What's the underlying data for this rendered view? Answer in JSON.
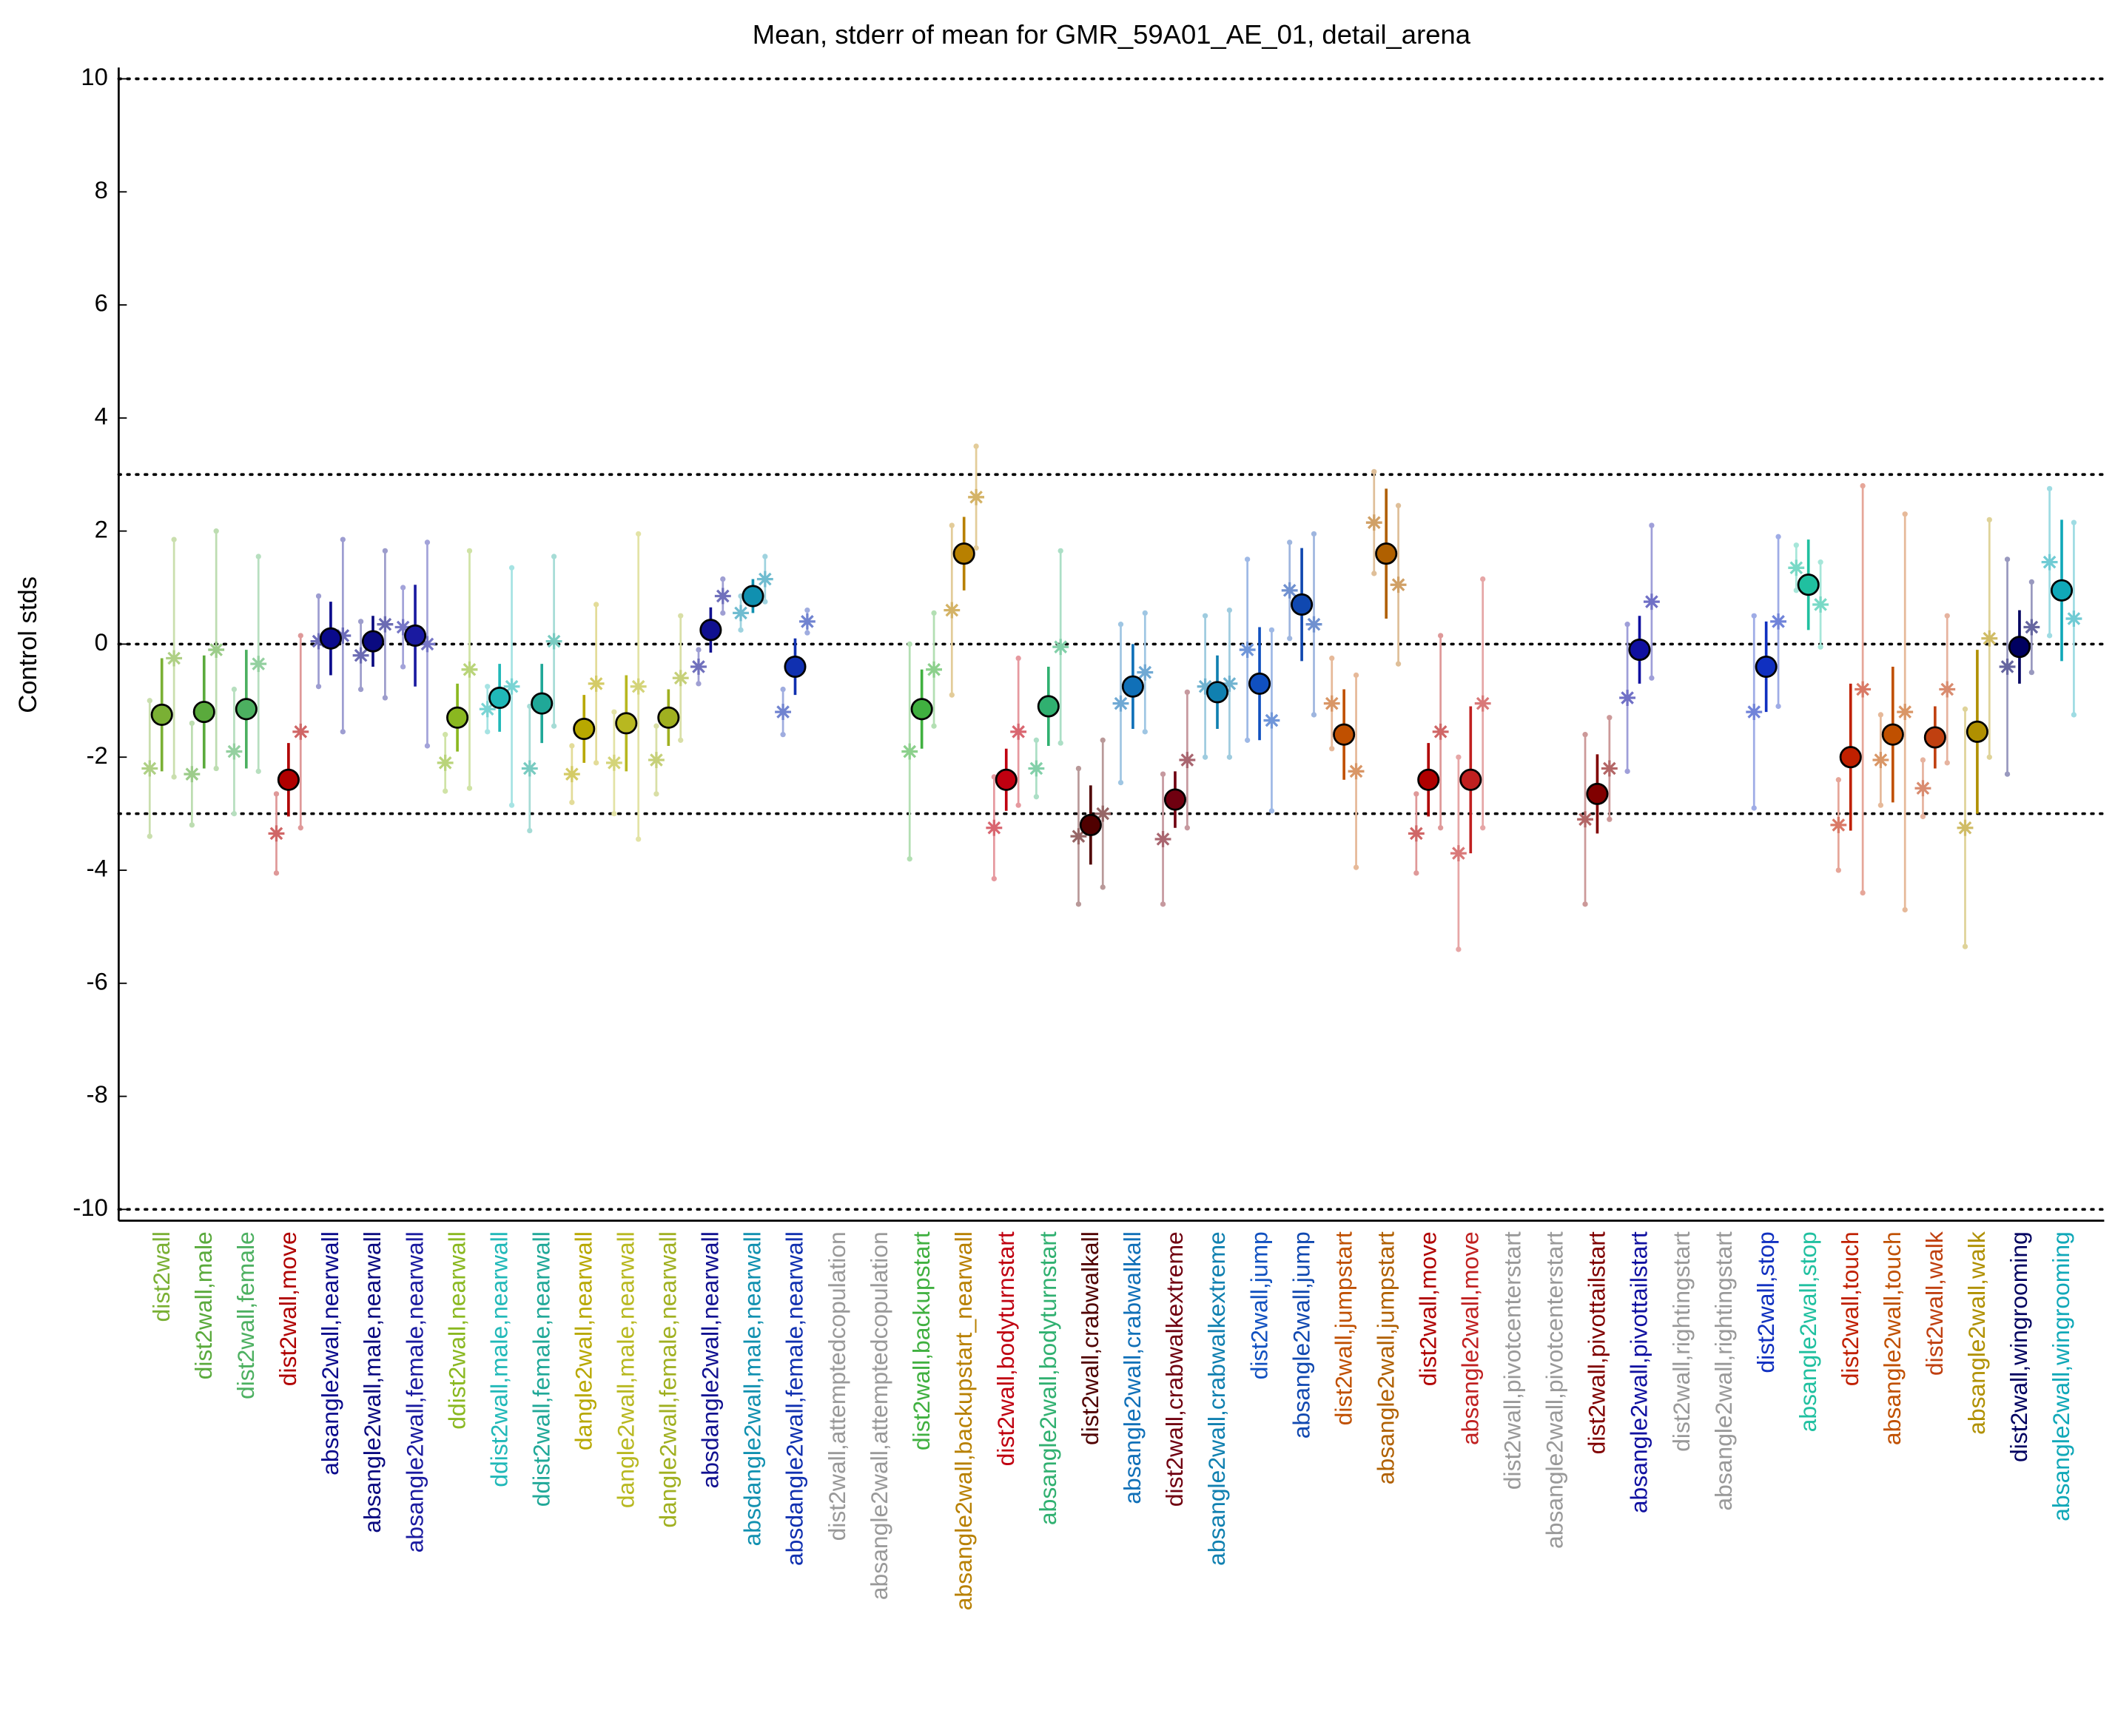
{
  "chart_data": {
    "type": "errorbar",
    "title": "Mean, stderr of mean for GMR_59A01_AE_01, detail_arena",
    "ylabel": "Control stds",
    "categories": [
      "dist2wall",
      "dist2wall,male",
      "dist2wall,female",
      "dist2wall,move",
      "absangle2wall,nearwall",
      "absangle2wall,male,nearwall",
      "absangle2wall,female,nearwall",
      "ddist2wall,nearwall",
      "ddist2wall,male,nearwall",
      "ddist2wall,female,nearwall",
      "dangle2wall,nearwall",
      "dangle2wall,male,nearwall",
      "dangle2wall,female,nearwall",
      "absdangle2wall,nearwall",
      "absdangle2wall,male,nearwall",
      "absdangle2wall,female,nearwall",
      "dist2wall,attemptedcopulation",
      "absangle2wall,attemptedcopulation",
      "dist2wall,backupstart",
      "absangle2wall,backupstart_nearwall",
      "dist2wall,bodyturnstart",
      "absangle2wall,bodyturnstart",
      "dist2wall,crabwalkall",
      "absangle2wall,crabwalkall",
      "dist2wall,crabwalkextreme",
      "absangle2wall,crabwalkextreme",
      "dist2wall,jump",
      "absangle2wall,jump",
      "dist2wall,jumpstart",
      "absangle2wall,jumpstart",
      "dist2wall,move",
      "absangle2wall,move",
      "dist2wall,pivotcenterstart",
      "absangle2wall,pivotcenterstart",
      "dist2wall,pivottailstart",
      "absangle2wall,pivottailstart",
      "dist2wall,rightingstart",
      "absangle2wall,rightingstart",
      "dist2wall,stop",
      "absangle2wall,stop",
      "dist2wall,touch",
      "absangle2wall,touch",
      "dist2wall,walk",
      "absangle2wall,walk",
      "dist2wall,wingrooming",
      "absangle2wall,wingrooming"
    ],
    "colors": [
      "#7ab034",
      "#5aaa3c",
      "#4cb060",
      "#b00000",
      "#0a0a8c",
      "#0a0a80",
      "#1a1aa0",
      "#8ab820",
      "#20b8b8",
      "#20a898",
      "#b8a800",
      "#b8b820",
      "#a0b020",
      "#101090",
      "#1090b0",
      "#1030b0",
      "#999999",
      "#999999",
      "#40b040",
      "#b88000",
      "#c00010",
      "#30b070",
      "#500000",
      "#1070b8",
      "#700010",
      "#1080b0",
      "#1050c0",
      "#1048b0",
      "#c05000",
      "#b06000",
      "#b00000",
      "#c02020",
      "#999999",
      "#999999",
      "#800000",
      "#1010a0",
      "#999999",
      "#999999",
      "#1030c0",
      "#20c0a0",
      "#c02000",
      "#c05000",
      "#c04010",
      "#b09000",
      "#000060",
      "#10a8b8"
    ],
    "values": [
      -1.25,
      -1.2,
      -1.15,
      -2.4,
      0.1,
      0.05,
      0.15,
      -1.3,
      -0.95,
      -1.05,
      -1.5,
      -1.4,
      -1.3,
      0.25,
      0.85,
      -0.4,
      null,
      null,
      -1.15,
      1.6,
      -2.4,
      -1.1,
      -3.2,
      -0.75,
      -2.75,
      -0.85,
      -0.7,
      0.7,
      -1.6,
      1.6,
      -2.4,
      -2.4,
      null,
      null,
      -2.65,
      -0.1,
      null,
      null,
      -0.4,
      1.05,
      -2.0,
      -1.6,
      -1.65,
      -1.55,
      -0.05,
      0.95
    ],
    "errors": [
      1.0,
      1.0,
      1.05,
      0.65,
      0.65,
      0.45,
      0.9,
      0.6,
      0.6,
      0.7,
      0.6,
      0.85,
      0.5,
      0.4,
      0.3,
      0.5,
      null,
      null,
      0.7,
      0.65,
      0.55,
      0.7,
      0.7,
      0.75,
      0.5,
      0.65,
      1.0,
      1.0,
      0.8,
      1.15,
      0.65,
      1.3,
      null,
      null,
      0.7,
      0.6,
      null,
      null,
      0.8,
      0.8,
      1.3,
      1.2,
      0.55,
      1.45,
      0.65,
      1.25
    ],
    "markers": [
      {
        "values": [
          -2.2,
          -2.3,
          -1.9,
          -3.35,
          0.05,
          -0.2,
          0.3,
          -2.1,
          -1.15,
          -2.2,
          -2.3,
          -2.1,
          -2.05,
          -0.4,
          0.55,
          -1.2,
          null,
          null,
          -1.9,
          0.6,
          -3.25,
          -2.2,
          -3.4,
          -1.05,
          -3.45,
          -0.75,
          -0.1,
          0.95,
          -1.05,
          2.15,
          -3.35,
          -3.7,
          null,
          null,
          -3.1,
          -0.95,
          null,
          null,
          -1.2,
          1.35,
          -3.2,
          -2.05,
          -2.55,
          -3.25,
          -0.4,
          1.45
        ],
        "errors": [
          1.2,
          0.9,
          1.1,
          0.7,
          0.8,
          0.6,
          0.7,
          0.5,
          0.4,
          1.1,
          0.5,
          0.9,
          0.6,
          0.3,
          0.3,
          0.4,
          null,
          null,
          1.9,
          1.5,
          0.9,
          0.5,
          1.2,
          1.4,
          1.15,
          1.25,
          1.6,
          0.85,
          0.8,
          0.9,
          0.7,
          1.7,
          null,
          null,
          1.5,
          1.3,
          null,
          null,
          1.7,
          0.4,
          0.8,
          0.8,
          0.5,
          2.1,
          1.9,
          1.3
        ]
      },
      {
        "values": [
          -0.25,
          -0.1,
          -0.35,
          -1.55,
          0.15,
          0.35,
          0.0,
          -0.45,
          -0.75,
          0.05,
          -0.7,
          -0.75,
          -0.6,
          0.85,
          1.15,
          0.4,
          null,
          null,
          -0.45,
          2.6,
          -1.55,
          -0.05,
          -3.0,
          -0.5,
          -2.05,
          -0.7,
          -1.35,
          0.35,
          -2.25,
          1.05,
          -1.55,
          -1.05,
          null,
          null,
          -2.2,
          0.75,
          null,
          null,
          0.4,
          0.7,
          -0.8,
          -1.2,
          -0.8,
          0.1,
          0.3,
          0.45
        ],
        "errors": [
          2.1,
          2.1,
          1.9,
          1.7,
          1.7,
          1.3,
          1.8,
          2.1,
          2.1,
          1.5,
          1.4,
          2.7,
          1.1,
          0.3,
          0.4,
          0.2,
          null,
          null,
          1.0,
          0.9,
          1.3,
          1.7,
          1.3,
          1.05,
          1.2,
          1.3,
          1.6,
          1.6,
          1.7,
          1.4,
          1.7,
          2.2,
          null,
          null,
          0.9,
          1.35,
          null,
          null,
          1.5,
          0.75,
          3.6,
          3.5,
          1.3,
          2.1,
          0.8,
          1.7
        ]
      }
    ],
    "ylim": [
      -10.2,
      10.2
    ],
    "yticks": [
      -10,
      -8,
      -6,
      -4,
      -2,
      0,
      2,
      4,
      6,
      8,
      10
    ],
    "reference_lines": [
      -10,
      -3,
      0,
      3,
      10
    ]
  }
}
